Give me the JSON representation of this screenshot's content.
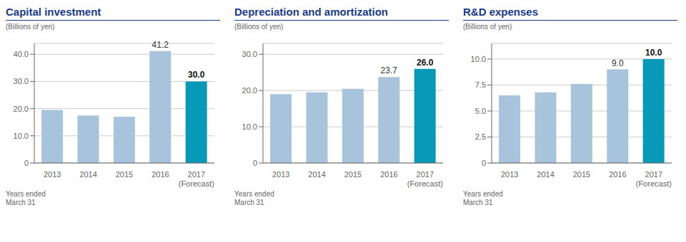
{
  "chart_data": [
    {
      "type": "bar",
      "title": "Capital investment",
      "subtitle": "(Billions of yen)",
      "x_label": "Years ended\nMarch 31",
      "categories": [
        "2013",
        "2014",
        "2015",
        "2016",
        "2017\n(Forecast)"
      ],
      "values": [
        19.5,
        17.5,
        17.0,
        41.2,
        30.0
      ],
      "data_labels": true,
      "value_labels": [
        null,
        null,
        null,
        "41.2",
        "30.0"
      ],
      "colors": [
        "#a8c4dc",
        "#a8c4dc",
        "#a8c4dc",
        "#a8c4dc",
        "#0899b8"
      ],
      "ylim": [
        0,
        44
      ],
      "yticks": [
        0,
        {
          "value": 10,
          "label": "10.0"
        },
        {
          "value": 20,
          "label": "20.0"
        },
        {
          "value": 30,
          "label": "30.0"
        },
        {
          "value": 40,
          "label": "40.0"
        }
      ],
      "grid": true
    },
    {
      "type": "bar",
      "title": "Depreciation and amortization",
      "subtitle": "(Billions of yen)",
      "x_label": "Years ended\nMarch 31",
      "categories": [
        "2013",
        "2014",
        "2015",
        "2016",
        "2017\n(Forecast)"
      ],
      "values": [
        19.0,
        19.5,
        20.5,
        23.7,
        26.0
      ],
      "data_labels": true,
      "value_labels": [
        null,
        null,
        null,
        "23.7",
        "26.0"
      ],
      "colors": [
        "#a8c4dc",
        "#a8c4dc",
        "#a8c4dc",
        "#a8c4dc",
        "#0899b8"
      ],
      "ylim": [
        0,
        33
      ],
      "yticks": [
        0,
        {
          "value": 10,
          "label": "10.0"
        },
        {
          "value": 20,
          "label": "20.0"
        },
        {
          "value": 30,
          "label": "30.0"
        }
      ],
      "grid": true
    },
    {
      "type": "bar",
      "title": "R&D expenses",
      "subtitle": "(Billions of yen)",
      "x_label": "Years ended\nMarch 31",
      "categories": [
        "2013",
        "2014",
        "2015",
        "2016",
        "2017\n(Forecast)"
      ],
      "values": [
        6.5,
        6.8,
        7.6,
        9.0,
        10.0
      ],
      "data_labels": true,
      "value_labels": [
        null,
        null,
        null,
        "9.0",
        "10.0"
      ],
      "colors": [
        "#a8c4dc",
        "#a8c4dc",
        "#a8c4dc",
        "#a8c4dc",
        "#0899b8"
      ],
      "ylim": [
        0,
        11.5
      ],
      "yticks": [
        0,
        2.5,
        {
          "value": 5,
          "label": "5.0"
        },
        {
          "value": 7.5,
          "label": "7.5"
        },
        {
          "value": 10,
          "label": "10.0"
        }
      ],
      "grid": true
    }
  ]
}
